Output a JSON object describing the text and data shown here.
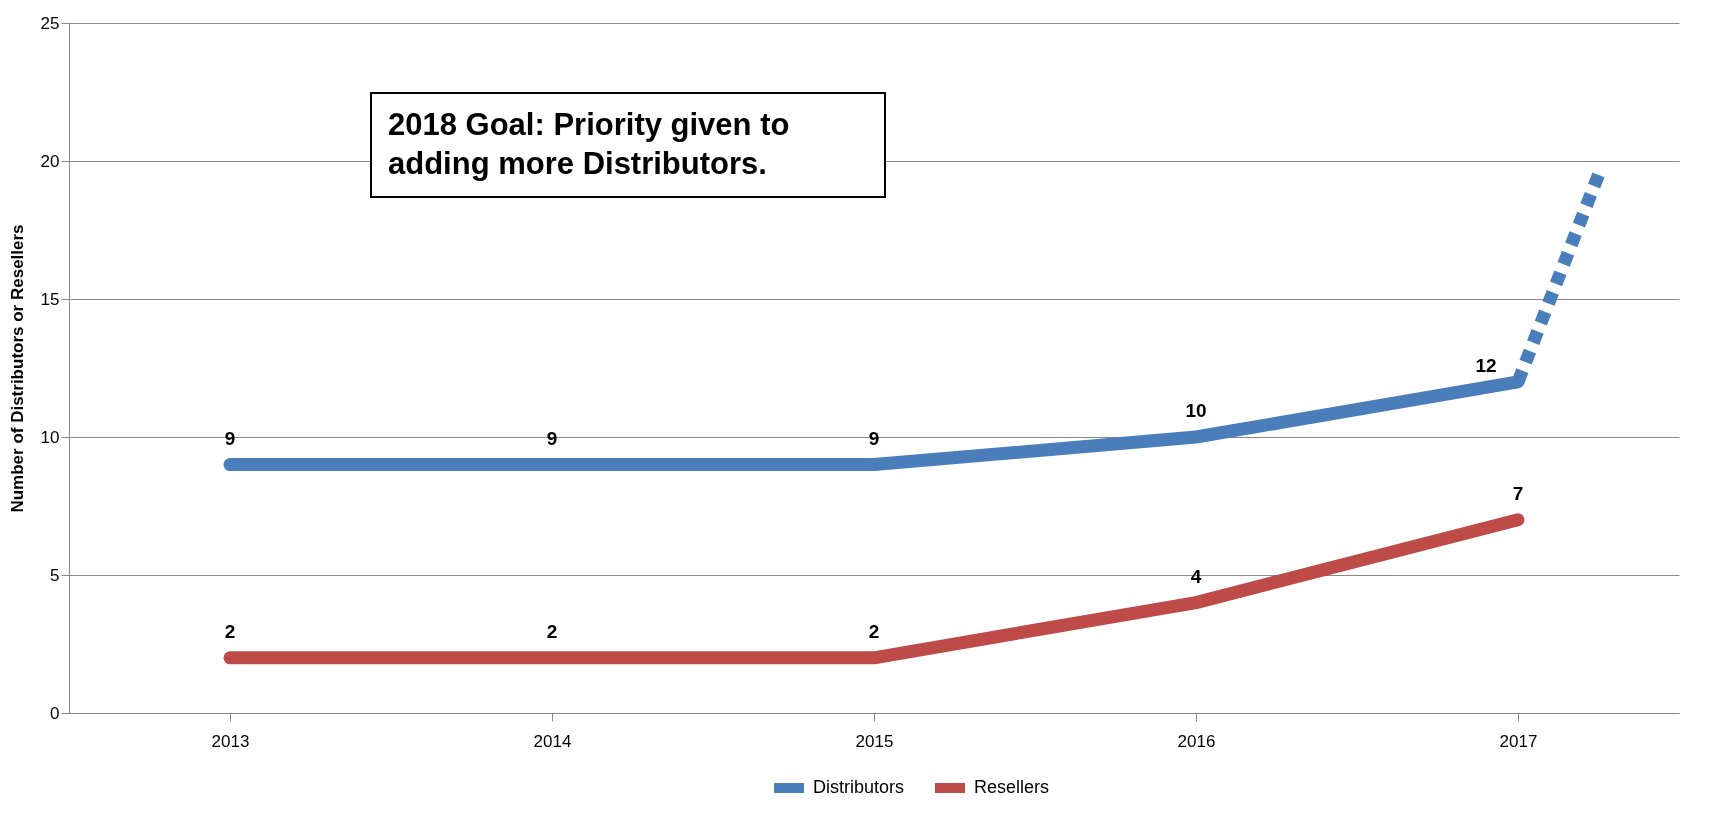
{
  "chart_data": {
    "type": "line",
    "ylabel": "Number of Distributors or Resellers",
    "x": [
      2013,
      2014,
      2015,
      2016,
      2017
    ],
    "xlim": [
      2012.5,
      2017.5
    ],
    "xticks": [
      2013,
      2014,
      2015,
      2016,
      2017
    ],
    "ylim": [
      0,
      25
    ],
    "yticks": [
      0,
      5,
      10,
      15,
      20,
      25
    ],
    "grid": "y",
    "legend": "bottom",
    "series": [
      {
        "name": "Distributors",
        "color": "#4a7ebb",
        "values": [
          9,
          9,
          9,
          10,
          12
        ],
        "value_labels": [
          "9",
          "9",
          "9",
          "10",
          "12"
        ]
      },
      {
        "name": "Resellers",
        "color": "#be4b48",
        "values": [
          2,
          2,
          2,
          4,
          7
        ],
        "value_labels": [
          "2",
          "2",
          "2",
          "4",
          "7"
        ]
      },
      {
        "color": "#4a7ebb",
        "x": [
          2017,
          2017.25
        ],
        "values": [
          12,
          19.5
        ],
        "line_style": "dashed"
      }
    ],
    "annotations": [
      "2018 Goal: Priority given to adding more Distributors."
    ]
  }
}
